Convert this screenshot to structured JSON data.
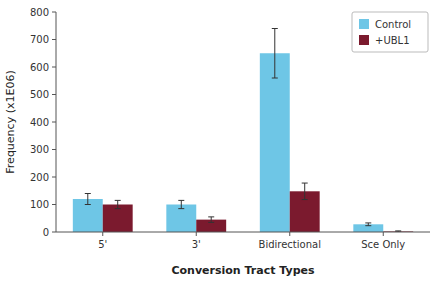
{
  "chart_data": {
    "type": "bar",
    "categories": [
      "5'",
      "3'",
      "Bidirectional",
      "Sce Only"
    ],
    "series": [
      {
        "name": "Control",
        "color": "#6EC6E6",
        "values": [
          120,
          100,
          650,
          28
        ],
        "errors": [
          20,
          15,
          90,
          5
        ]
      },
      {
        "name": "+UBL1",
        "color": "#7B1A2E",
        "values": [
          100,
          45,
          148,
          2
        ],
        "errors": [
          15,
          10,
          30,
          2
        ]
      }
    ],
    "xlabel": "Conversion Tract Types",
    "ylabel": "Frequency (x1E06)",
    "ylim": [
      0,
      800
    ],
    "yticks": [
      0,
      100,
      200,
      300,
      400,
      500,
      600,
      700,
      800
    ],
    "legend": "upper right",
    "grid": false
  }
}
